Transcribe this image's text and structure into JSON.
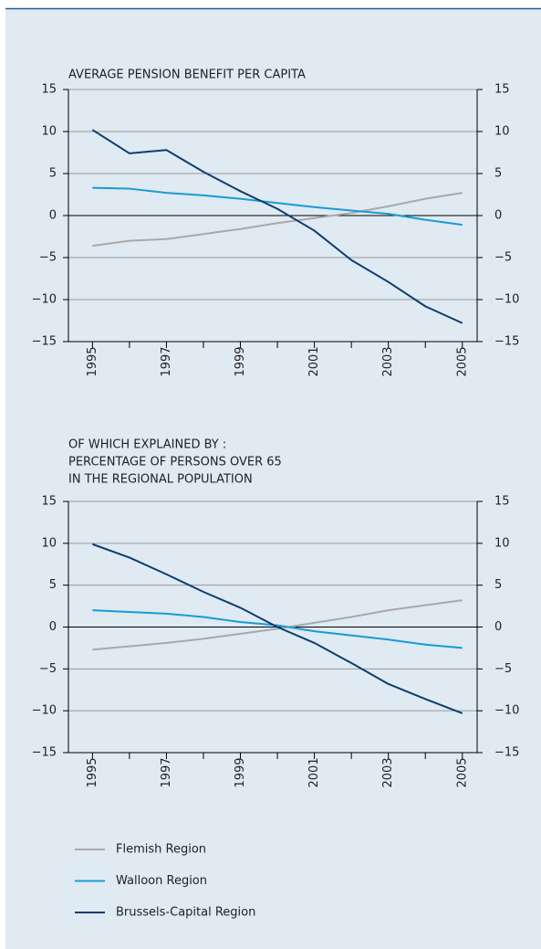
{
  "chart_data": [
    {
      "type": "line",
      "title": [
        "AVERAGE PENSION BENEFIT PER CAPITA"
      ],
      "x": [
        1995,
        1996,
        1997,
        1998,
        1999,
        2000,
        2001,
        2002,
        2003,
        2004,
        2005
      ],
      "xlim": [
        1994.35,
        2005.4
      ],
      "xticks": [
        1995,
        1997,
        1999,
        2001,
        2003,
        2005
      ],
      "xminorticks": [
        1996,
        1998,
        2000,
        2002,
        2004
      ],
      "ylim": [
        -15,
        15
      ],
      "yticks": [
        {
          "value": -15,
          "label": "−15"
        },
        {
          "value": -10,
          "label": "−10"
        },
        {
          "value": -5,
          "label": "−5"
        },
        0,
        5,
        10,
        15
      ],
      "grid": true,
      "series": [
        {
          "name": "Flemish Region",
          "color": "#a9a9a9",
          "values": [
            -3.6,
            -3.0,
            -2.8,
            -2.2,
            -1.6,
            -0.9,
            -0.3,
            0.3,
            1.1,
            2.0,
            2.7
          ]
        },
        {
          "name": "Walloon Region",
          "color": "#1a9ad6",
          "values": [
            3.3,
            3.2,
            2.7,
            2.4,
            2.0,
            1.5,
            1.0,
            0.6,
            0.2,
            -0.5,
            -1.1
          ]
        },
        {
          "name": "Brussels-Capital Region",
          "color": "#0e3d6e",
          "values": [
            10.2,
            7.4,
            7.8,
            5.2,
            2.9,
            0.8,
            -1.8,
            -5.3,
            -7.9,
            -10.8,
            -12.8
          ]
        }
      ]
    },
    {
      "type": "line",
      "title": [
        "OF WHICH EXPLAINED BY :",
        "PERCENTAGE OF PERSONS OVER 65",
        "IN THE REGIONAL POPULATION"
      ],
      "x": [
        1995,
        1996,
        1997,
        1998,
        1999,
        2000,
        2001,
        2002,
        2003,
        2004,
        2005
      ],
      "xlim": [
        1994.35,
        2005.4
      ],
      "xticks": [
        1995,
        1997,
        1999,
        2001,
        2003,
        2005
      ],
      "xminorticks": [
        1996,
        1998,
        2000,
        2002,
        2004
      ],
      "ylim": [
        -15,
        15
      ],
      "yticks": [
        {
          "value": -15,
          "label": "−15"
        },
        {
          "value": -10,
          "label": "−10"
        },
        {
          "value": -5,
          "label": "−5"
        },
        0,
        5,
        10,
        15
      ],
      "grid": true,
      "series": [
        {
          "color": "#a9a9a9",
          "values": [
            -2.7,
            -2.3,
            -1.9,
            -1.4,
            -0.8,
            -0.2,
            0.5,
            1.2,
            2.0,
            2.6,
            3.2
          ]
        },
        {
          "color": "#1a9ad6",
          "values": [
            2.0,
            1.8,
            1.6,
            1.2,
            0.6,
            0.2,
            -0.5,
            -1.0,
            -1.5,
            -2.1,
            -2.5
          ]
        },
        {
          "color": "#0e3d6e",
          "values": [
            9.9,
            8.3,
            6.3,
            4.2,
            2.3,
            0.0,
            -1.9,
            -4.3,
            -6.8,
            -8.6,
            -10.3
          ]
        }
      ]
    }
  ]
}
